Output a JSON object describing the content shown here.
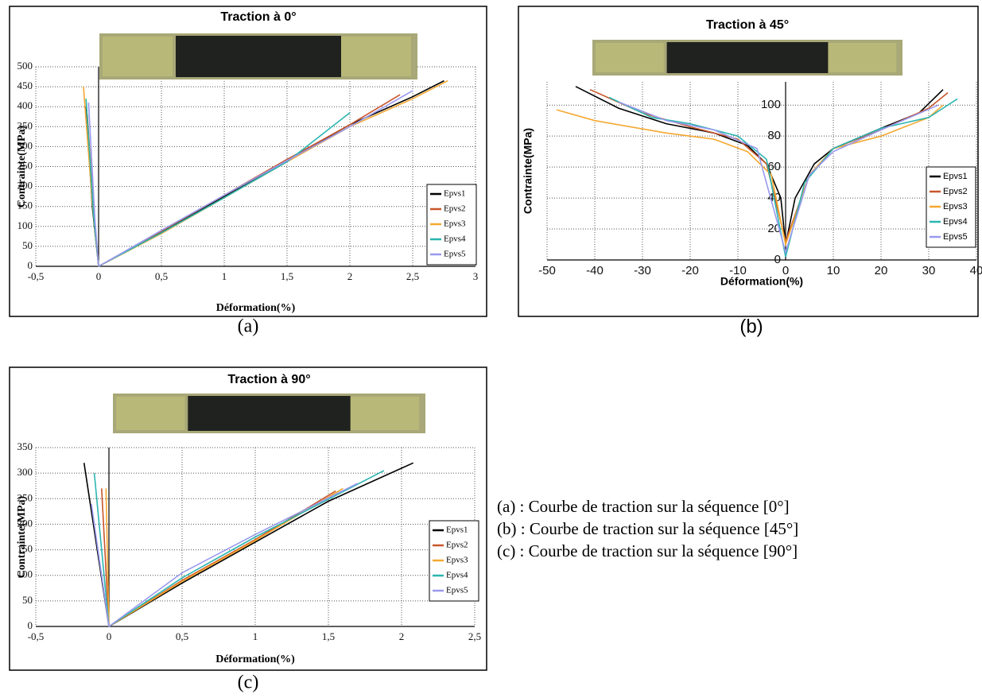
{
  "chart_data": [
    {
      "type": "line",
      "title": "Traction à 0°",
      "caption": "(a)",
      "xlabel": "Déformation(%)",
      "ylabel": "Contrainte(MPa)",
      "xlim": [
        -0.5,
        3
      ],
      "xticks": [
        {
          "value": -0.5,
          "label": "-0,5"
        },
        0,
        {
          "value": 0.5,
          "label": "0,5"
        },
        1,
        {
          "value": 1.5,
          "label": "1,5"
        },
        2,
        {
          "value": 2.5,
          "label": "2,5"
        },
        3
      ],
      "ylim": [
        0,
        500
      ],
      "yticks": [
        0,
        50,
        100,
        150,
        200,
        250,
        300,
        350,
        400,
        450,
        500
      ],
      "grid": true,
      "legend": "lower right",
      "series": [
        {
          "name": "Epvs1",
          "color": "#000000",
          "x": [
            -0.1,
            -0.05,
            0,
            null,
            0,
            0.5,
            1,
            1.5,
            2,
            2.5,
            2.75
          ],
          "values": [
            400,
            150,
            0,
            null,
            0,
            85,
            175,
            265,
            355,
            425,
            465
          ]
        },
        {
          "name": "Epvs2",
          "color": "#c8562a",
          "x": [
            -0.09,
            -0.04,
            0,
            null,
            0,
            0.5,
            1,
            1.5,
            2,
            2.4
          ],
          "values": [
            380,
            140,
            0,
            null,
            0,
            88,
            178,
            268,
            355,
            430
          ]
        },
        {
          "name": "Epvs3",
          "color": "#f4a830",
          "x": [
            -0.12,
            -0.05,
            0,
            null,
            0,
            0.5,
            1,
            1.5,
            2,
            2.5,
            2.78
          ],
          "values": [
            450,
            160,
            0,
            null,
            0,
            82,
            172,
            262,
            350,
            420,
            465
          ]
        },
        {
          "name": "Epvs4",
          "color": "#2bb5b0",
          "x": [
            -0.1,
            -0.04,
            0,
            null,
            0,
            0.5,
            1,
            1.5,
            2
          ],
          "values": [
            420,
            130,
            0,
            null,
            0,
            84,
            172,
            262,
            385
          ]
        },
        {
          "name": "Epvs5",
          "color": "#9999ee",
          "x": [
            -0.08,
            -0.03,
            0,
            null,
            0,
            0.5,
            1,
            1.5,
            2,
            2.5
          ],
          "values": [
            410,
            120,
            0,
            null,
            0,
            90,
            178,
            265,
            350,
            440
          ]
        }
      ]
    },
    {
      "type": "line",
      "title": "Traction à 45°",
      "caption": "(b)",
      "xlabel": "Déformation(%)",
      "ylabel": "Contrainte(MPa)",
      "xlim": [
        -50,
        40
      ],
      "xticks": [
        -50,
        -40,
        -30,
        -20,
        -10,
        0,
        10,
        20,
        30,
        40
      ],
      "ylim": [
        0,
        115
      ],
      "yticks": [
        0,
        20,
        40,
        60,
        80,
        100
      ],
      "grid": true,
      "legend": "lower right",
      "ytick_labels_at": "zero",
      "series": [
        {
          "name": "Epvs1",
          "color": "#000000",
          "x": [
            -44,
            -35,
            -25,
            -15,
            -8,
            -4,
            -1,
            0,
            2,
            6,
            10,
            20,
            28,
            33
          ],
          "values": [
            112,
            98,
            88,
            82,
            74,
            62,
            40,
            10,
            40,
            62,
            72,
            85,
            95,
            110
          ]
        },
        {
          "name": "Epvs2",
          "color": "#c8562a",
          "x": [
            -41,
            -30,
            -20,
            -10,
            -4,
            0,
            5,
            10,
            20,
            30,
            34
          ],
          "values": [
            110,
            95,
            86,
            78,
            62,
            12,
            55,
            72,
            84,
            98,
            108
          ]
        },
        {
          "name": "Epvs3",
          "color": "#f4a830",
          "x": [
            -48,
            -40,
            -25,
            -15,
            -8,
            -3,
            0,
            5,
            10,
            20,
            30,
            33
          ],
          "values": [
            97,
            90,
            82,
            78,
            70,
            55,
            10,
            55,
            72,
            80,
            92,
            100
          ]
        },
        {
          "name": "Epvs4",
          "color": "#2bb5b0",
          "x": [
            -37,
            -28,
            -20,
            -10,
            -4,
            0,
            4,
            10,
            20,
            30,
            36
          ],
          "values": [
            105,
            92,
            88,
            80,
            65,
            2,
            50,
            72,
            85,
            92,
            104
          ]
        },
        {
          "name": "Epvs5",
          "color": "#9999ee",
          "x": [
            -35,
            -25,
            -15,
            -6,
            0,
            5,
            10,
            20,
            32
          ],
          "values": [
            102,
            90,
            84,
            72,
            5,
            55,
            70,
            84,
            100
          ]
        }
      ]
    },
    {
      "type": "line",
      "title": "Traction à 90°",
      "caption": "(c)",
      "xlabel": "Déformation(%)",
      "ylabel": "Contrainte(MPa)",
      "xlim": [
        -0.5,
        2.5
      ],
      "xticks": [
        {
          "value": -0.5,
          "label": "-0,5"
        },
        0,
        {
          "value": 0.5,
          "label": "0,5"
        },
        1,
        {
          "value": 1.5,
          "label": "1,5"
        },
        2,
        {
          "value": 2.5,
          "label": "2,5"
        }
      ],
      "ylim": [
        0,
        350
      ],
      "yticks": [
        0,
        50,
        100,
        150,
        200,
        250,
        300,
        350
      ],
      "grid": true,
      "legend": "lower right",
      "series": [
        {
          "name": "Epvs1",
          "color": "#000000",
          "x": [
            -0.17,
            -0.08,
            0,
            null,
            0,
            0.5,
            1,
            1.5,
            2.08
          ],
          "values": [
            320,
            150,
            0,
            null,
            0,
            85,
            165,
            245,
            320
          ]
        },
        {
          "name": "Epvs2",
          "color": "#c8562a",
          "x": [
            -0.05,
            0,
            null,
            0,
            0.5,
            1,
            1.55
          ],
          "values": [
            270,
            0,
            null,
            0,
            90,
            170,
            265
          ]
        },
        {
          "name": "Epvs3",
          "color": "#f4a830",
          "x": [
            -0.02,
            0,
            null,
            0,
            0.5,
            1,
            1.6
          ],
          "values": [
            270,
            0,
            null,
            0,
            88,
            168,
            270
          ]
        },
        {
          "name": "Epvs4",
          "color": "#2bb5b0",
          "x": [
            -0.1,
            -0.05,
            0,
            null,
            0,
            0.5,
            1,
            1.88
          ],
          "values": [
            300,
            150,
            0,
            null,
            0,
            95,
            175,
            305
          ]
        },
        {
          "name": "Epvs5",
          "color": "#9999ee",
          "x": [
            -0.12,
            0,
            null,
            0,
            0.5,
            1,
            1.7
          ],
          "values": [
            240,
            0,
            null,
            0,
            105,
            180,
            280
          ]
        }
      ]
    }
  ],
  "notes": [
    "(a) : Courbe de traction sur la séquence [0°]",
    "(b) : Courbe de traction sur la séquence [45°]",
    "(c) : Courbe de traction sur la séquence [90°]"
  ]
}
